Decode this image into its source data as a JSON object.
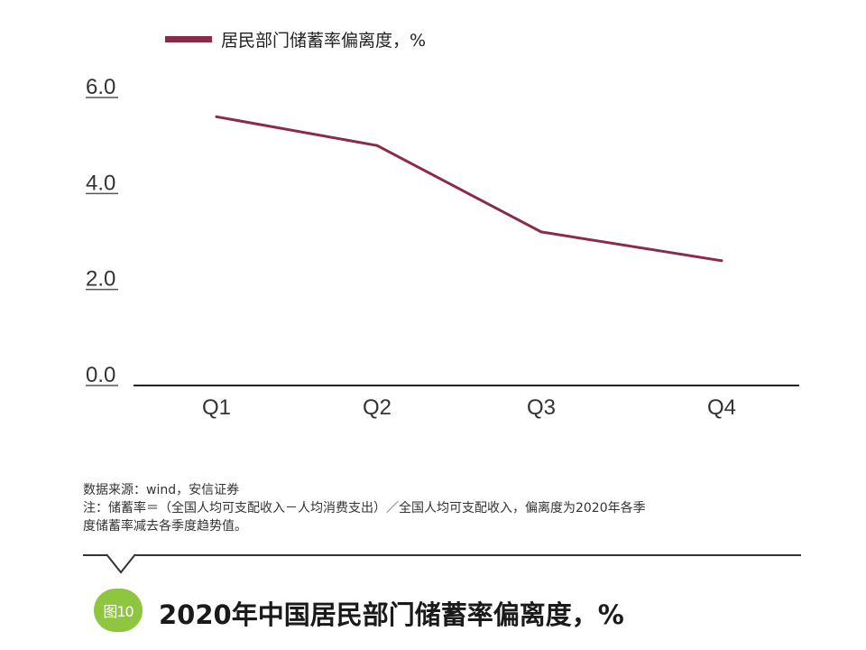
{
  "chart_data": {
    "type": "line",
    "categories": [
      "Q1",
      "Q2",
      "Q3",
      "Q4"
    ],
    "series": [
      {
        "name": "居民部门储蓄率偏离度，%",
        "values": [
          5.6,
          5.0,
          3.2,
          2.6
        ],
        "color": "#8a2b47"
      }
    ],
    "ylim": [
      0,
      6
    ],
    "yticks": [
      "6.0",
      "4.0",
      "2.0",
      "0.0"
    ],
    "ytick_values": [
      6,
      4,
      2,
      0
    ],
    "legend_position": "top-left",
    "grid": false
  },
  "notes": {
    "source": "数据来源：wind，安信证券",
    "line1": "注：储蓄率＝（全国人均可支配收入－人均消费支出）／全国人均可支配收入，偏离度为2020年各季",
    "line2": "度储蓄率减去各季度趋势值。"
  },
  "figure": {
    "badge": "图10",
    "title": "2020年中国居民部门储蓄率偏离度，%",
    "badge_color": "#8ec63f"
  }
}
